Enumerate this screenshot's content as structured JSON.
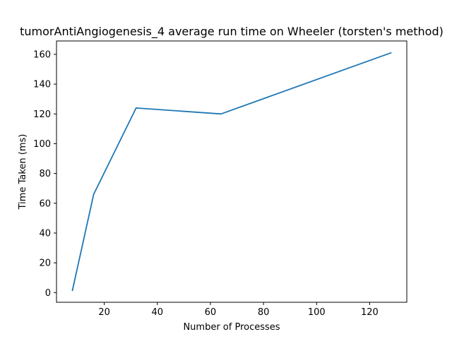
{
  "chart_data": {
    "type": "line",
    "title": "tumorAntiAngiogenesis_4 average run time on Wheeler (torsten's method)",
    "xlabel": "Number of Processes",
    "ylabel": "Time Taken (ms)",
    "x": [
      8,
      16,
      32,
      64,
      128
    ],
    "series": [
      {
        "values": [
          1.5,
          66,
          124,
          120,
          161
        ],
        "color": "#1f77b4"
      }
    ],
    "xlim": [
      2,
      134
    ],
    "ylim": [
      -6.5,
      169
    ],
    "xticks": [
      20,
      40,
      60,
      80,
      100,
      120
    ],
    "yticks": [
      0,
      20,
      40,
      60,
      80,
      100,
      120,
      140,
      160
    ],
    "grid": false,
    "legend": false
  }
}
